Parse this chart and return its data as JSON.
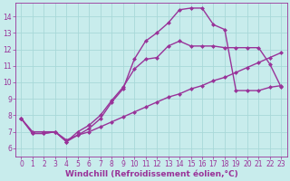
{
  "xlabel": "Windchill (Refroidissement éolien,°C)",
  "bg_color": "#c8ecec",
  "grid_color": "#a8d8d8",
  "line_color": "#993399",
  "xlim": [
    -0.5,
    23.5
  ],
  "ylim": [
    5.5,
    14.8
  ],
  "xticks": [
    0,
    1,
    2,
    3,
    4,
    5,
    6,
    7,
    8,
    9,
    10,
    11,
    12,
    13,
    14,
    15,
    16,
    17,
    18,
    19,
    20,
    21,
    22,
    23
  ],
  "yticks": [
    6,
    7,
    8,
    9,
    10,
    11,
    12,
    13,
    14
  ],
  "line1_x": [
    0,
    1,
    2,
    3,
    4,
    5,
    6,
    7,
    8,
    9,
    10,
    11,
    12,
    13,
    14,
    15,
    16,
    17,
    18,
    19,
    20,
    21,
    22,
    23
  ],
  "line1_y": [
    7.8,
    6.9,
    6.9,
    7.0,
    6.4,
    6.8,
    7.2,
    7.8,
    8.8,
    9.6,
    11.4,
    12.5,
    13.0,
    13.6,
    14.4,
    14.5,
    14.5,
    13.5,
    13.2,
    9.5,
    9.5,
    9.5,
    9.7,
    9.8
  ],
  "line2_x": [
    0,
    1,
    2,
    3,
    4,
    5,
    6,
    7,
    8,
    9,
    10,
    11,
    12,
    13,
    14,
    15,
    16,
    17,
    18,
    19,
    20,
    21,
    22,
    23
  ],
  "line2_y": [
    7.8,
    6.9,
    6.9,
    7.0,
    6.4,
    7.0,
    7.4,
    8.0,
    8.9,
    9.7,
    10.8,
    11.4,
    11.5,
    12.2,
    12.5,
    12.2,
    12.2,
    12.2,
    12.1,
    12.1,
    12.1,
    12.1,
    11.1,
    9.7
  ],
  "line3_x": [
    0,
    1,
    2,
    3,
    4,
    5,
    6,
    7,
    8,
    9,
    10,
    11,
    12,
    13,
    14,
    15,
    16,
    17,
    18,
    19,
    20,
    21,
    22,
    23
  ],
  "line3_y": [
    7.8,
    7.0,
    7.0,
    7.0,
    6.5,
    6.8,
    7.0,
    7.3,
    7.6,
    7.9,
    8.2,
    8.5,
    8.8,
    9.1,
    9.3,
    9.6,
    9.8,
    10.1,
    10.3,
    10.6,
    10.9,
    11.2,
    11.5,
    11.8
  ],
  "marker": "D",
  "marker_size": 2.5,
  "linewidth": 1.0,
  "tick_fontsize": 5.5,
  "xlabel_fontsize": 6.5
}
